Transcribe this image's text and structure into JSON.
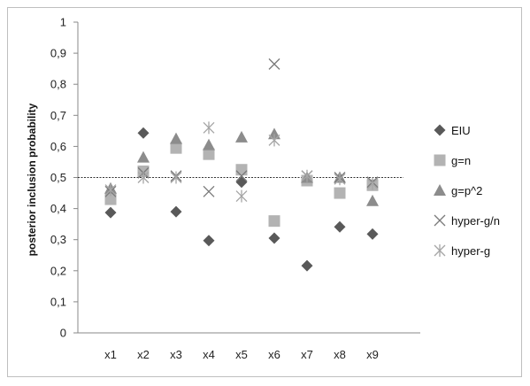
{
  "chart_data": {
    "type": "scatter",
    "title": "",
    "xlabel": "",
    "ylabel": "posterior inclusion  probability",
    "ylim": [
      0,
      1
    ],
    "y_ticks": [
      "0",
      "0,1",
      "0,2",
      "0,3",
      "0,4",
      "0,5",
      "0,6",
      "0,7",
      "0,8",
      "0,9",
      "1"
    ],
    "categories": [
      "x1",
      "x2",
      "x3",
      "x4",
      "x5",
      "x6",
      "x7",
      "x8",
      "x9"
    ],
    "reference_line": 0.5,
    "grid": false,
    "legend_position": "right",
    "series": [
      {
        "name": "EIU",
        "marker": "diamond",
        "color": "#595959",
        "values": [
          0.387,
          0.643,
          0.39,
          0.297,
          0.485,
          0.305,
          0.216,
          0.341,
          0.318
        ]
      },
      {
        "name": "g=n",
        "marker": "square",
        "color": "#b3b3b3",
        "values": [
          0.43,
          0.52,
          0.595,
          0.575,
          0.525,
          0.36,
          0.49,
          0.45,
          0.475
        ]
      },
      {
        "name": "g=p^2",
        "marker": "triangle",
        "color": "#8c8c8c",
        "values": [
          0.465,
          0.565,
          0.625,
          0.605,
          0.63,
          0.64,
          0.5,
          0.5,
          0.425
        ]
      },
      {
        "name": "hyper-g/n",
        "marker": "x",
        "color": "#7a7a7a",
        "values": [
          0.455,
          0.515,
          0.505,
          0.455,
          0.505,
          0.865,
          0.505,
          0.5,
          0.485
        ]
      },
      {
        "name": "hyper-g",
        "marker": "asterisk",
        "color": "#a6a6a6",
        "values": [
          0.46,
          0.5,
          0.5,
          0.66,
          0.44,
          0.62,
          0.505,
          0.495,
          0.48
        ]
      }
    ]
  }
}
